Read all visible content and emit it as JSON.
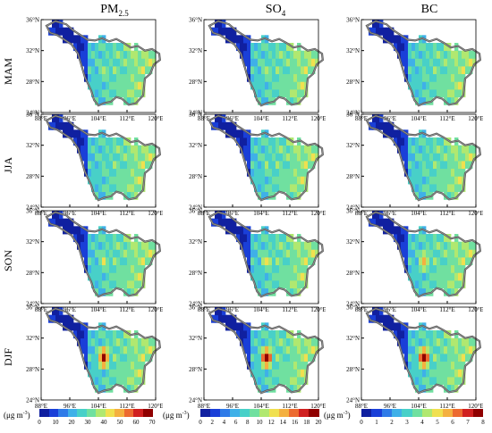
{
  "columns": [
    {
      "id": "pm25",
      "title_main": "PM",
      "title_sub": "2.5"
    },
    {
      "id": "so4",
      "title_main": "SO",
      "title_sub": "4"
    },
    {
      "id": "bc",
      "title_main": "BC",
      "title_sub": ""
    }
  ],
  "rows": [
    "MAM",
    "JJA",
    "SON",
    "DJF"
  ],
  "axes": {
    "lat_ticks": [
      "36°N",
      "32°N",
      "28°N",
      "24°N"
    ],
    "lon_ticks": [
      "88°E",
      "96°E",
      "104°E",
      "112°E",
      "120°E"
    ],
    "lon_range": [
      88,
      120
    ],
    "lat_range": [
      24,
      36
    ]
  },
  "colorbars": [
    {
      "unit_main": "(μg m",
      "unit_exp": "-3",
      "unit_close": ")",
      "labels": [
        "0",
        "10",
        "20",
        "30",
        "40",
        "50",
        "60",
        "70"
      ],
      "range": [
        0,
        70
      ]
    },
    {
      "unit_main": "(μg m",
      "unit_exp": "-3",
      "unit_close": ")",
      "labels": [
        "0",
        "2",
        "4",
        "6",
        "8",
        "10",
        "12",
        "14",
        "16",
        "18",
        "20"
      ],
      "range": [
        0,
        20
      ]
    },
    {
      "unit_main": "(μg m",
      "unit_exp": "-3",
      "unit_close": ")",
      "labels": [
        "0",
        "1",
        "2",
        "3",
        "4",
        "5",
        "6",
        "7",
        "8"
      ],
      "range": [
        0,
        8
      ]
    }
  ],
  "palette": [
    "#1020a0",
    "#1a3fd8",
    "#2f7be8",
    "#3fb0e8",
    "#48d0c8",
    "#70e0a0",
    "#b0e870",
    "#f0e050",
    "#f4b040",
    "#ec6a30",
    "#d02020",
    "#900000"
  ],
  "hotspots": {
    "pm25": {
      "MAM": 0.55,
      "JJA": 0.45,
      "SON": 0.6,
      "DJF": 0.92
    },
    "so4": {
      "MAM": 0.55,
      "JJA": 0.5,
      "SON": 0.62,
      "DJF": 0.95
    },
    "bc": {
      "MAM": 0.45,
      "JJA": 0.42,
      "SON": 0.7,
      "DJF": 0.93
    }
  }
}
